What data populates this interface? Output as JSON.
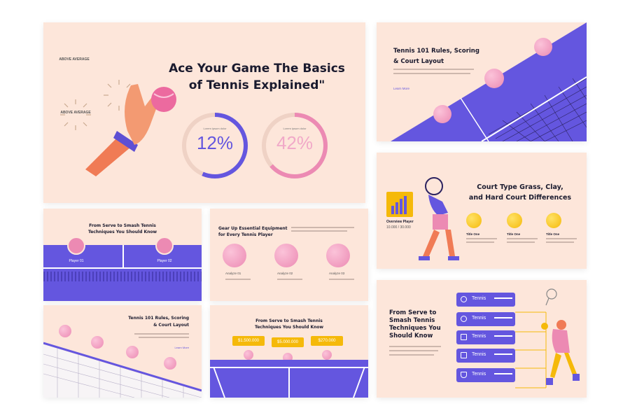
{
  "s1": {
    "title_line1": "Ace Your Game The Basics",
    "title_line2": "of Tennis Explained\"",
    "badge1": "ABOVE AVERAGE",
    "badge2": "ABOVE AVERAGE",
    "gauge1": {
      "label": "Lorem ipsum dolor",
      "value": "12%",
      "fill": 0.12
    },
    "gauge2": {
      "label": "Lorem ipsum dolor",
      "value": "42%",
      "fill": 0.42
    }
  },
  "s2": {
    "title_line1": "Tennis 101 Rules, Scoring",
    "title_line2": "& Court Layout",
    "link": "Learn More"
  },
  "s3": {
    "title_line1": "From Serve to Smash Tennis",
    "title_line2": "Techniques You Should Know",
    "player1": "Player 01",
    "player2": "Player 02"
  },
  "s4": {
    "title_line1": "Gear Up Essential Equipment",
    "title_line2": "for Every Tennis Player",
    "items": [
      "Analyze 01",
      "Analyze 02",
      "Analyze 03"
    ]
  },
  "s5": {
    "title_line1": "Court Type Grass, Clay,",
    "title_line2": "and Hard Court Differences",
    "overview_label": "Overview Player",
    "overview_value": "10.000 / 30.000",
    "items": [
      "Title One",
      "Title One",
      "Title One"
    ]
  },
  "s6": {
    "title_line1": "Tennis 101 Rules, Scoring",
    "title_line2": "& Court Layout",
    "link": "Learn More"
  },
  "s7": {
    "title_line1": "From Serve to Smash Tennis",
    "title_line2": "Techniques You Should Know",
    "prices": [
      "$1.500.000",
      "$5.000.000",
      "$270.000"
    ]
  },
  "s8": {
    "title": [
      "From Serve to",
      "Smash Tennis",
      "Techniques You",
      "Should Know"
    ],
    "tabs": [
      "Tennis",
      "Tennis",
      "Tennis",
      "Tennis",
      "Tennis"
    ]
  },
  "colors": {
    "accent": "#6456df",
    "pink": "#ec8ab3",
    "background": "#fde6da",
    "yellow": "#f5b90a"
  }
}
